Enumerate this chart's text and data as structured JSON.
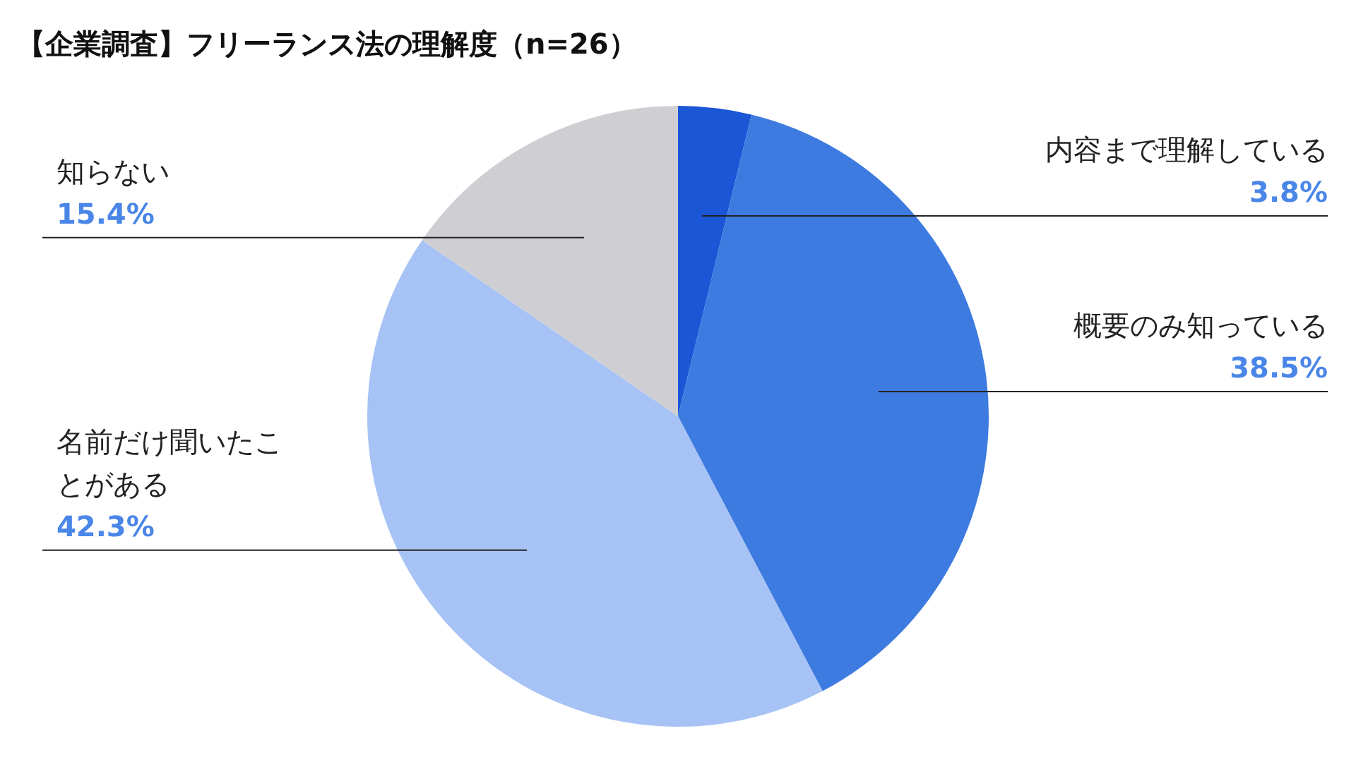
{
  "chart_data": {
    "type": "pie",
    "title": "【企業調査】フリーランス法の理解度（n=26）",
    "categories": [
      "内容まで理解している",
      "概要のみ知っている",
      "名前だけ聞いたことがある",
      "知らない"
    ],
    "values": [
      3.8,
      38.5,
      42.3,
      15.4
    ],
    "value_labels": [
      "3.8%",
      "38.5%",
      "42.3%",
      "15.4%"
    ],
    "colors": [
      "#1a56d6",
      "#3d7be0",
      "#a7c3f5",
      "#cfcfd3"
    ],
    "legend": false
  }
}
